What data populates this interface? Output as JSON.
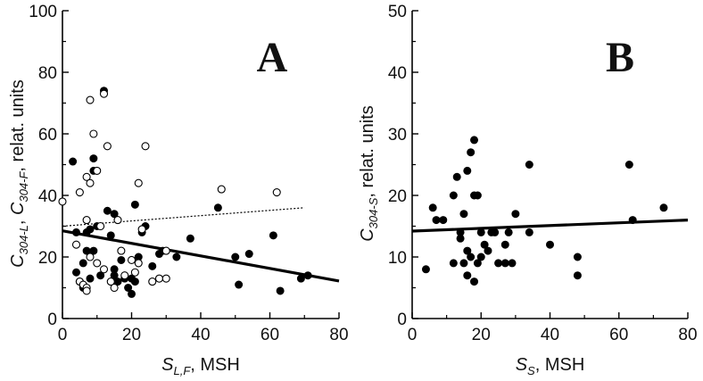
{
  "chart_data": [
    {
      "type": "scatter",
      "panel_label": "A",
      "x_axis": {
        "var": "S",
        "sub": "L,F",
        "unit": ", MSH",
        "lim": [
          0,
          80
        ],
        "ticks": [
          0,
          20,
          40,
          60,
          80
        ]
      },
      "y_axis": {
        "var1": "C",
        "sub1": "304-L",
        "sep": ", ",
        "var2": "C",
        "sub2": "304-F",
        "unit": ", relat. units",
        "lim": [
          0,
          100
        ],
        "ticks": [
          0,
          20,
          40,
          60,
          80,
          100
        ]
      },
      "series": [
        {
          "name": "C304-L (filled)",
          "marker": "filled-circle",
          "points": [
            [
              3,
              51
            ],
            [
              4,
              28
            ],
            [
              4,
              15
            ],
            [
              5,
              12
            ],
            [
              6,
              18
            ],
            [
              6,
              10
            ],
            [
              7,
              28
            ],
            [
              7,
              22
            ],
            [
              8,
              29
            ],
            [
              8,
              13
            ],
            [
              9,
              52
            ],
            [
              9,
              48
            ],
            [
              9,
              22
            ],
            [
              10,
              30
            ],
            [
              11,
              14
            ],
            [
              12,
              74
            ],
            [
              13,
              35
            ],
            [
              14,
              27
            ],
            [
              15,
              34
            ],
            [
              15,
              16
            ],
            [
              15,
              14
            ],
            [
              16,
              12
            ],
            [
              17,
              19
            ],
            [
              18,
              13
            ],
            [
              19,
              10
            ],
            [
              20,
              8
            ],
            [
              20,
              13
            ],
            [
              21,
              37
            ],
            [
              21,
              12
            ],
            [
              22,
              20
            ],
            [
              23,
              28
            ],
            [
              24,
              30
            ],
            [
              26,
              17
            ],
            [
              28,
              21
            ],
            [
              29,
              22
            ],
            [
              33,
              20
            ],
            [
              37,
              26
            ],
            [
              45,
              36
            ],
            [
              50,
              20
            ],
            [
              51,
              11
            ],
            [
              54,
              21
            ],
            [
              61,
              27
            ],
            [
              63,
              9
            ],
            [
              69,
              13
            ],
            [
              71,
              14
            ]
          ]
        },
        {
          "name": "C304-F (open)",
          "marker": "open-circle",
          "points": [
            [
              0,
              38
            ],
            [
              4,
              24
            ],
            [
              5,
              41
            ],
            [
              5,
              12
            ],
            [
              6,
              11
            ],
            [
              7,
              10
            ],
            [
              7,
              9
            ],
            [
              7,
              46
            ],
            [
              7,
              32
            ],
            [
              8,
              71
            ],
            [
              8,
              44
            ],
            [
              8,
              20
            ],
            [
              9,
              60
            ],
            [
              10,
              48
            ],
            [
              10,
              18
            ],
            [
              11,
              30
            ],
            [
              12,
              73
            ],
            [
              12,
              16
            ],
            [
              13,
              56
            ],
            [
              14,
              12
            ],
            [
              15,
              10
            ],
            [
              16,
              32
            ],
            [
              17,
              22
            ],
            [
              18,
              14
            ],
            [
              20,
              19
            ],
            [
              21,
              15
            ],
            [
              22,
              44
            ],
            [
              22,
              18
            ],
            [
              23,
              29
            ],
            [
              24,
              56
            ],
            [
              26,
              12
            ],
            [
              28,
              13
            ],
            [
              30,
              13
            ],
            [
              30,
              22
            ],
            [
              46,
              42
            ],
            [
              62,
              41
            ]
          ]
        }
      ],
      "fits": [
        {
          "name": "fit C304-L",
          "style": "solid",
          "x": [
            0,
            80
          ],
          "y": [
            28.5,
            12.2
          ]
        },
        {
          "name": "fit C304-F",
          "style": "dotted",
          "x": [
            0,
            70
          ],
          "y": [
            30,
            36
          ]
        }
      ]
    },
    {
      "type": "scatter",
      "panel_label": "B",
      "x_axis": {
        "var": "S",
        "sub": "S",
        "unit": ", MSH",
        "lim": [
          0,
          80
        ],
        "ticks": [
          0,
          20,
          40,
          60,
          80
        ]
      },
      "y_axis": {
        "var1": "C",
        "sub1": "304-S",
        "unit": ", relat. units",
        "lim": [
          0,
          50
        ],
        "ticks": [
          0,
          10,
          20,
          30,
          40,
          50
        ]
      },
      "series": [
        {
          "name": "C304-S",
          "marker": "filled-circle",
          "points": [
            [
              4,
              8
            ],
            [
              6,
              18
            ],
            [
              7,
              16
            ],
            [
              9,
              16
            ],
            [
              12,
              20
            ],
            [
              12,
              9
            ],
            [
              13,
              23
            ],
            [
              14,
              14
            ],
            [
              14,
              13
            ],
            [
              15,
              9
            ],
            [
              15,
              17
            ],
            [
              16,
              24
            ],
            [
              16,
              11
            ],
            [
              16,
              7
            ],
            [
              17,
              27
            ],
            [
              17,
              10
            ],
            [
              18,
              29
            ],
            [
              18,
              20
            ],
            [
              18,
              6
            ],
            [
              19,
              20
            ],
            [
              19,
              9
            ],
            [
              20,
              14
            ],
            [
              20,
              10
            ],
            [
              21,
              12
            ],
            [
              22,
              11
            ],
            [
              23,
              14
            ],
            [
              24,
              14
            ],
            [
              25,
              9
            ],
            [
              27,
              12
            ],
            [
              27,
              9
            ],
            [
              28,
              14
            ],
            [
              29,
              9
            ],
            [
              30,
              17
            ],
            [
              34,
              25
            ],
            [
              34,
              14
            ],
            [
              40,
              12
            ],
            [
              48,
              10
            ],
            [
              48,
              7
            ],
            [
              63,
              25
            ],
            [
              64,
              16
            ],
            [
              73,
              18
            ]
          ]
        }
      ],
      "fits": [
        {
          "name": "fit C304-S",
          "style": "solid",
          "x": [
            0,
            80
          ],
          "y": [
            14.2,
            16
          ]
        }
      ]
    }
  ]
}
